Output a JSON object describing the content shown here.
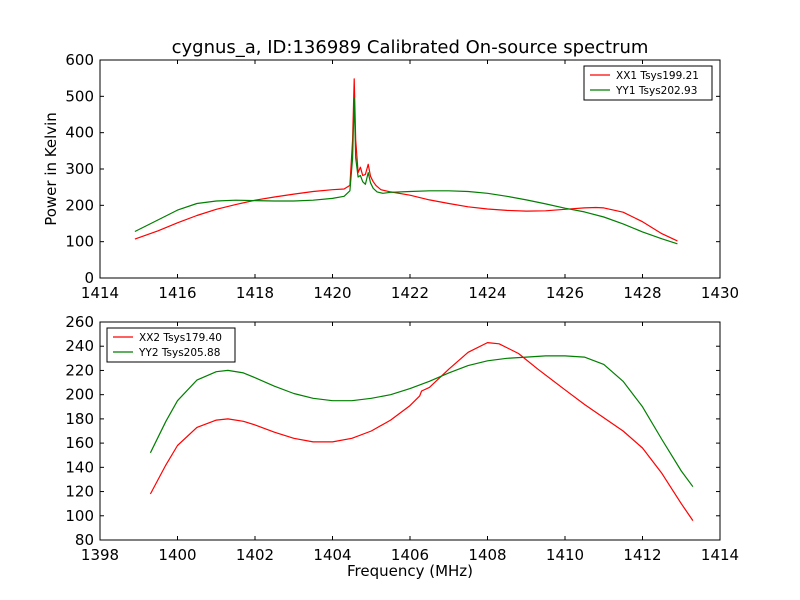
{
  "chart_data": [
    {
      "type": "line",
      "title": "cygnus_a, ID:136989 Calibrated On-source spectrum",
      "xlabel": "",
      "ylabel": "Power in Kelvin",
      "xlim": [
        1414,
        1430
      ],
      "ylim": [
        0,
        600
      ],
      "xticks": [
        1414,
        1416,
        1418,
        1420,
        1422,
        1424,
        1426,
        1428,
        1430
      ],
      "yticks": [
        0,
        100,
        200,
        300,
        400,
        500,
        600
      ],
      "grid": false,
      "legend": "top-right",
      "series": [
        {
          "name": "XX1 Tsys199.21",
          "color": "#ff0000",
          "points": [
            [
              1414.9,
              107
            ],
            [
              1415.5,
              130
            ],
            [
              1416.0,
              152
            ],
            [
              1416.5,
              172
            ],
            [
              1417.0,
              189
            ],
            [
              1417.5,
              202
            ],
            [
              1418.0,
              214
            ],
            [
              1418.5,
              223
            ],
            [
              1419.0,
              231
            ],
            [
              1419.5,
              238
            ],
            [
              1420.0,
              243
            ],
            [
              1420.3,
              245
            ],
            [
              1420.45,
              255
            ],
            [
              1420.52,
              380
            ],
            [
              1420.56,
              548
            ],
            [
              1420.6,
              380
            ],
            [
              1420.66,
              290
            ],
            [
              1420.72,
              305
            ],
            [
              1420.78,
              282
            ],
            [
              1420.85,
              285
            ],
            [
              1420.92,
              313
            ],
            [
              1420.98,
              280
            ],
            [
              1421.05,
              265
            ],
            [
              1421.12,
              255
            ],
            [
              1421.25,
              243
            ],
            [
              1421.5,
              237
            ],
            [
              1422.0,
              228
            ],
            [
              1422.5,
              215
            ],
            [
              1423.0,
              205
            ],
            [
              1423.5,
              196
            ],
            [
              1424.0,
              190
            ],
            [
              1424.5,
              186
            ],
            [
              1425.0,
              184
            ],
            [
              1425.5,
              185
            ],
            [
              1426.0,
              189
            ],
            [
              1426.5,
              193
            ],
            [
              1426.8,
              194
            ],
            [
              1427.0,
              193
            ],
            [
              1427.5,
              181
            ],
            [
              1428.0,
              155
            ],
            [
              1428.5,
              122
            ],
            [
              1428.9,
              102
            ]
          ]
        },
        {
          "name": "YY1 Tsys202.93",
          "color": "#007f00",
          "points": [
            [
              1414.9,
              128
            ],
            [
              1415.5,
              160
            ],
            [
              1416.0,
              187
            ],
            [
              1416.5,
              205
            ],
            [
              1417.0,
              212
            ],
            [
              1417.5,
              214
            ],
            [
              1418.0,
              213
            ],
            [
              1418.5,
              212
            ],
            [
              1419.0,
              212
            ],
            [
              1419.5,
              214
            ],
            [
              1420.0,
              219
            ],
            [
              1420.3,
              225
            ],
            [
              1420.45,
              240
            ],
            [
              1420.52,
              330
            ],
            [
              1420.56,
              495
            ],
            [
              1420.6,
              330
            ],
            [
              1420.66,
              278
            ],
            [
              1420.72,
              282
            ],
            [
              1420.78,
              265
            ],
            [
              1420.85,
              258
            ],
            [
              1420.92,
              290
            ],
            [
              1420.98,
              262
            ],
            [
              1421.05,
              247
            ],
            [
              1421.15,
              237
            ],
            [
              1421.3,
              233
            ],
            [
              1421.5,
              236
            ],
            [
              1422.0,
              238
            ],
            [
              1422.5,
              240
            ],
            [
              1423.0,
              240
            ],
            [
              1423.5,
              238
            ],
            [
              1424.0,
              233
            ],
            [
              1424.5,
              225
            ],
            [
              1425.0,
              215
            ],
            [
              1425.5,
              204
            ],
            [
              1426.0,
              192
            ],
            [
              1426.5,
              182
            ],
            [
              1427.0,
              168
            ],
            [
              1427.5,
              149
            ],
            [
              1428.0,
              127
            ],
            [
              1428.5,
              108
            ],
            [
              1428.9,
              94
            ]
          ]
        }
      ]
    },
    {
      "type": "line",
      "title": "",
      "xlabel": "Frequency (MHz)",
      "ylabel": "",
      "xlim": [
        1398,
        1414
      ],
      "ylim": [
        80,
        260
      ],
      "xticks": [
        1398,
        1400,
        1402,
        1404,
        1406,
        1408,
        1410,
        1412,
        1414
      ],
      "yticks": [
        80,
        100,
        120,
        140,
        160,
        180,
        200,
        220,
        240,
        260
      ],
      "grid": false,
      "legend": "top-left",
      "series": [
        {
          "name": "XX2 Tsys179.40",
          "color": "#ff0000",
          "points": [
            [
              1399.3,
              118
            ],
            [
              1399.7,
              142
            ],
            [
              1400.0,
              158
            ],
            [
              1400.5,
              173
            ],
            [
              1401.0,
              179
            ],
            [
              1401.3,
              180
            ],
            [
              1401.7,
              178
            ],
            [
              1402.0,
              175
            ],
            [
              1402.5,
              169
            ],
            [
              1403.0,
              164
            ],
            [
              1403.5,
              161
            ],
            [
              1404.0,
              161
            ],
            [
              1404.5,
              164
            ],
            [
              1405.0,
              170
            ],
            [
              1405.5,
              179
            ],
            [
              1406.0,
              191
            ],
            [
              1406.25,
              199
            ],
            [
              1406.3,
              203
            ],
            [
              1406.5,
              206
            ],
            [
              1407.0,
              221
            ],
            [
              1407.5,
              235
            ],
            [
              1408.0,
              243
            ],
            [
              1408.3,
              242
            ],
            [
              1408.8,
              234
            ],
            [
              1409.3,
              221
            ],
            [
              1410.0,
              204
            ],
            [
              1410.5,
              192
            ],
            [
              1411.0,
              181
            ],
            [
              1411.5,
              170
            ],
            [
              1412.0,
              156
            ],
            [
              1412.5,
              135
            ],
            [
              1413.0,
              110
            ],
            [
              1413.3,
              96
            ]
          ]
        },
        {
          "name": "YY2 Tsys205.88",
          "color": "#007f00",
          "points": [
            [
              1399.3,
              152
            ],
            [
              1399.7,
              178
            ],
            [
              1400.0,
              195
            ],
            [
              1400.5,
              212
            ],
            [
              1401.0,
              219
            ],
            [
              1401.3,
              220
            ],
            [
              1401.7,
              218
            ],
            [
              1402.0,
              214
            ],
            [
              1402.5,
              207
            ],
            [
              1403.0,
              201
            ],
            [
              1403.5,
              197
            ],
            [
              1404.0,
              195
            ],
            [
              1404.5,
              195
            ],
            [
              1405.0,
              197
            ],
            [
              1405.5,
              200
            ],
            [
              1406.0,
              205
            ],
            [
              1406.5,
              211
            ],
            [
              1407.0,
              218
            ],
            [
              1407.5,
              224
            ],
            [
              1408.0,
              228
            ],
            [
              1408.5,
              230
            ],
            [
              1409.0,
              231
            ],
            [
              1409.5,
              232
            ],
            [
              1410.0,
              232
            ],
            [
              1410.5,
              231
            ],
            [
              1411.0,
              225
            ],
            [
              1411.5,
              211
            ],
            [
              1412.0,
              190
            ],
            [
              1412.5,
              163
            ],
            [
              1413.0,
              137
            ],
            [
              1413.3,
              124
            ]
          ]
        }
      ]
    }
  ]
}
